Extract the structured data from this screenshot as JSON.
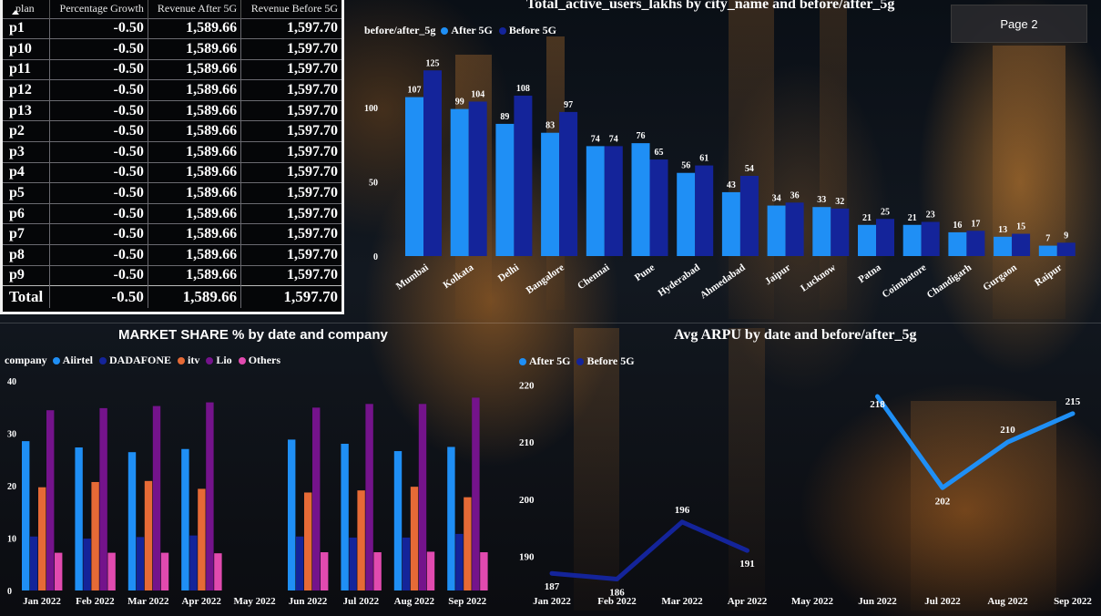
{
  "page_button": "Page 2",
  "colors": {
    "after": "#1f8ff5",
    "before": "#14249a",
    "airtel": "#1f8ff5",
    "dadafone": "#14249a",
    "itv": "#e66a36",
    "lio": "#74138b",
    "others": "#e14aaf"
  },
  "table": {
    "columns": [
      "plan",
      "Percentage Growth",
      "Revenue After 5G",
      "Revenue Before 5G"
    ],
    "rows": [
      [
        "p1",
        "-0.50",
        "1,589.66",
        "1,597.70"
      ],
      [
        "p10",
        "-0.50",
        "1,589.66",
        "1,597.70"
      ],
      [
        "p11",
        "-0.50",
        "1,589.66",
        "1,597.70"
      ],
      [
        "p12",
        "-0.50",
        "1,589.66",
        "1,597.70"
      ],
      [
        "p13",
        "-0.50",
        "1,589.66",
        "1,597.70"
      ],
      [
        "p2",
        "-0.50",
        "1,589.66",
        "1,597.70"
      ],
      [
        "p3",
        "-0.50",
        "1,589.66",
        "1,597.70"
      ],
      [
        "p4",
        "-0.50",
        "1,589.66",
        "1,597.70"
      ],
      [
        "p5",
        "-0.50",
        "1,589.66",
        "1,597.70"
      ],
      [
        "p6",
        "-0.50",
        "1,589.66",
        "1,597.70"
      ],
      [
        "p7",
        "-0.50",
        "1,589.66",
        "1,597.70"
      ],
      [
        "p8",
        "-0.50",
        "1,589.66",
        "1,597.70"
      ],
      [
        "p9",
        "-0.50",
        "1,589.66",
        "1,597.70"
      ]
    ],
    "total": [
      "Total",
      "-0.50",
      "1,589.66",
      "1,597.70"
    ]
  },
  "chart_data": [
    {
      "id": "users",
      "type": "bar",
      "title": "Total_active_users_lakhs by city_name and before/after_5g",
      "legend_title": "before/after_5g",
      "categories": [
        "Mumbai",
        "Kolkata",
        "Delhi",
        "Bangalore",
        "Chennai",
        "Pune",
        "Hyderabad",
        "Ahmedabad",
        "Jaipur",
        "Lucknow",
        "Patna",
        "Coimbatore",
        "Chandigarh",
        "Gurgaon",
        "Raipur"
      ],
      "series": [
        {
          "name": "After 5G",
          "values": [
            107,
            99,
            89,
            83,
            74,
            76,
            56,
            43,
            34,
            33,
            21,
            21,
            16,
            13,
            7
          ]
        },
        {
          "name": "Before 5G",
          "values": [
            125,
            104,
            108,
            97,
            74,
            65,
            61,
            54,
            36,
            32,
            25,
            23,
            17,
            15,
            9
          ]
        }
      ],
      "yticks": [
        0,
        50,
        100
      ],
      "ylim": [
        0,
        130
      ],
      "grid": false,
      "legend_position": "top-left"
    },
    {
      "id": "market",
      "type": "bar",
      "title": "MARKET SHARE % by date and company",
      "legend_title": "company",
      "categories": [
        "Jan 2022",
        "Feb 2022",
        "Mar 2022",
        "Apr 2022",
        "May 2022",
        "Jun 2022",
        "Jul 2022",
        "Aug 2022",
        "Sep 2022"
      ],
      "series": [
        {
          "name": "Aiirtel",
          "values": [
            28.5,
            27.3,
            26.4,
            27.0,
            null,
            28.8,
            28.0,
            26.6,
            27.4
          ]
        },
        {
          "name": "DADAFONE",
          "values": [
            10.3,
            9.9,
            10.2,
            10.5,
            null,
            10.3,
            10.1,
            10.1,
            10.8
          ]
        },
        {
          "name": "itv",
          "values": [
            19.7,
            20.7,
            20.9,
            19.4,
            null,
            18.7,
            19.1,
            19.8,
            17.8
          ]
        },
        {
          "name": "Lio",
          "values": [
            34.4,
            34.8,
            35.2,
            35.9,
            null,
            34.9,
            35.6,
            35.6,
            36.8
          ]
        },
        {
          "name": "Others",
          "values": [
            7.2,
            7.2,
            7.2,
            7.1,
            null,
            7.3,
            7.3,
            7.4,
            7.3
          ]
        }
      ],
      "yticks": [
        0,
        10,
        20,
        30,
        40
      ],
      "ylim": [
        0,
        40
      ],
      "grid": false,
      "legend_position": "top-left"
    },
    {
      "id": "arpu",
      "type": "line",
      "title": "Avg ARPU by date and before/after_5g",
      "categories": [
        "Jan 2022",
        "Feb 2022",
        "Mar 2022",
        "Apr 2022",
        "May 2022",
        "Jun 2022",
        "Jul 2022",
        "Aug 2022",
        "Sep 2022"
      ],
      "series": [
        {
          "name": "After 5G",
          "values": [
            null,
            null,
            null,
            null,
            null,
            218,
            202,
            210,
            215
          ]
        },
        {
          "name": "Before 5G",
          "values": [
            187,
            186,
            196,
            191,
            null,
            null,
            null,
            null,
            null
          ]
        }
      ],
      "yticks": [
        190,
        200,
        210,
        220
      ],
      "ylim": [
        184,
        222
      ],
      "grid": false,
      "legend_position": "top-left"
    }
  ]
}
